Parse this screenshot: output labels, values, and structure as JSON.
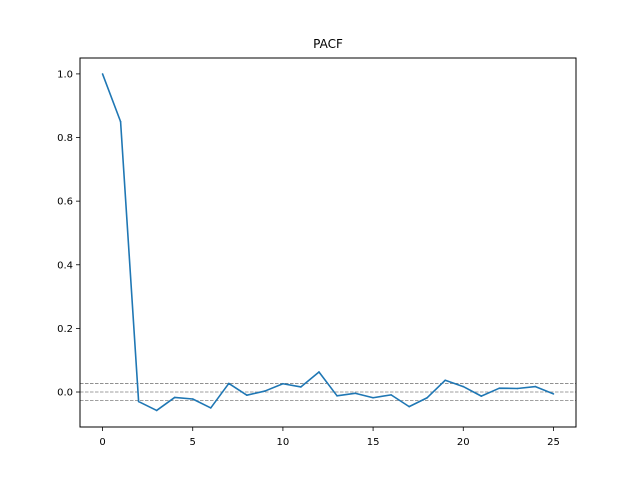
{
  "chart_data": {
    "type": "line",
    "title": "PACF",
    "xlabel": "",
    "ylabel": "",
    "xlim": [
      -1.25,
      26.25
    ],
    "ylim": [
      -0.11,
      1.05
    ],
    "xticks": [
      0,
      5,
      10,
      15,
      20,
      25
    ],
    "xtick_labels": [
      "0",
      "5",
      "10",
      "15",
      "20",
      "25"
    ],
    "yticks": [
      0.0,
      0.2,
      0.4,
      0.6,
      0.8,
      1.0
    ],
    "ytick_labels": [
      "0.0",
      "0.2",
      "0.4",
      "0.6",
      "0.8",
      "1.0"
    ],
    "grid": false,
    "series": [
      {
        "color": "#1f77b4",
        "x": [
          0,
          1,
          2,
          3,
          4,
          5,
          6,
          7,
          8,
          9,
          10,
          11,
          12,
          13,
          14,
          15,
          16,
          17,
          18,
          19,
          20,
          21,
          22,
          23,
          24,
          25
        ],
        "values": [
          1.0,
          0.85,
          -0.03,
          -0.058,
          -0.017,
          -0.022,
          -0.05,
          0.027,
          -0.01,
          0.003,
          0.026,
          0.016,
          0.063,
          -0.012,
          -0.004,
          -0.018,
          -0.009,
          -0.046,
          -0.018,
          0.037,
          0.017,
          -0.013,
          0.012,
          0.011,
          0.017,
          -0.006
        ]
      }
    ],
    "reference_lines": [
      {
        "y": 0.0,
        "color": "#808080",
        "style": "dashed"
      },
      {
        "y": 0.027,
        "color": "#808080",
        "style": "dashed"
      },
      {
        "y": -0.027,
        "color": "#808080",
        "style": "dashed"
      }
    ]
  }
}
